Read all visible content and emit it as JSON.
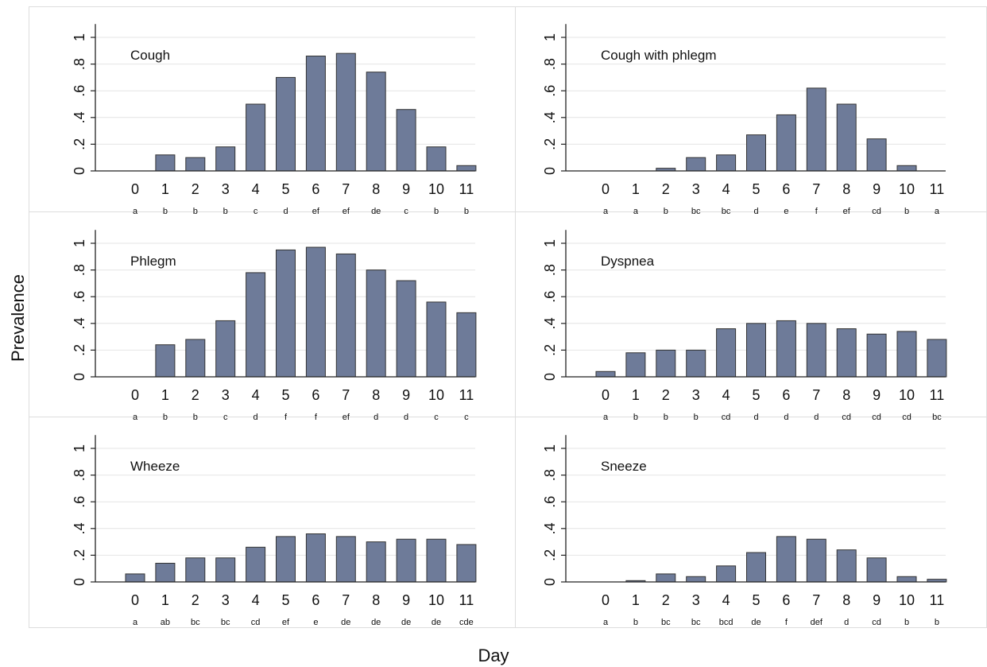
{
  "figure": {
    "ylabel": "Prevalence",
    "xlabel": "Day"
  },
  "chart_data": [
    {
      "type": "bar",
      "title": "Cough",
      "categories": [
        "0",
        "1",
        "2",
        "3",
        "4",
        "5",
        "6",
        "7",
        "8",
        "9",
        "10",
        "11"
      ],
      "values": [
        0,
        0.12,
        0.1,
        0.18,
        0.5,
        0.7,
        0.86,
        0.88,
        0.74,
        0.46,
        0.18,
        0.04
      ],
      "letters": [
        "a",
        "b",
        "b",
        "b",
        "c",
        "d",
        "ef",
        "ef",
        "de",
        "c",
        "b",
        "b"
      ],
      "yticks": [
        "0",
        ".2",
        ".4",
        ".6",
        ".8",
        "1"
      ],
      "ylim": [
        0,
        1.1
      ],
      "color": "#6e7b99"
    },
    {
      "type": "bar",
      "title": "Cough with phlegm",
      "categories": [
        "0",
        "1",
        "2",
        "3",
        "4",
        "5",
        "6",
        "7",
        "8",
        "9",
        "10",
        "11"
      ],
      "values": [
        0,
        0,
        0.02,
        0.1,
        0.12,
        0.27,
        0.42,
        0.62,
        0.5,
        0.24,
        0.04,
        0
      ],
      "letters": [
        "a",
        "a",
        "b",
        "bc",
        "bc",
        "d",
        "e",
        "f",
        "ef",
        "cd",
        "b",
        "a"
      ],
      "yticks": [
        "0",
        ".2",
        ".4",
        ".6",
        ".8",
        "1"
      ],
      "ylim": [
        0,
        1.1
      ],
      "color": "#6e7b99"
    },
    {
      "type": "bar",
      "title": "Phlegm",
      "categories": [
        "0",
        "1",
        "2",
        "3",
        "4",
        "5",
        "6",
        "7",
        "8",
        "9",
        "10",
        "11"
      ],
      "values": [
        0,
        0.24,
        0.28,
        0.42,
        0.78,
        0.95,
        0.97,
        0.92,
        0.8,
        0.72,
        0.56,
        0.48
      ],
      "letters": [
        "a",
        "b",
        "b",
        "c",
        "d",
        "f",
        "f",
        "ef",
        "d",
        "d",
        "c",
        "c"
      ],
      "yticks": [
        "0",
        ".2",
        ".4",
        ".6",
        ".8",
        "1"
      ],
      "ylim": [
        0,
        1.1
      ],
      "color": "#6e7b99"
    },
    {
      "type": "bar",
      "title": "Dyspnea",
      "categories": [
        "0",
        "1",
        "2",
        "3",
        "4",
        "5",
        "6",
        "7",
        "8",
        "9",
        "10",
        "11"
      ],
      "values": [
        0.04,
        0.18,
        0.2,
        0.2,
        0.36,
        0.4,
        0.42,
        0.4,
        0.36,
        0.32,
        0.34,
        0.28
      ],
      "letters": [
        "a",
        "b",
        "b",
        "b",
        "cd",
        "d",
        "d",
        "d",
        "cd",
        "cd",
        "cd",
        "bc"
      ],
      "yticks": [
        "0",
        ".2",
        ".4",
        ".6",
        ".8",
        "1"
      ],
      "ylim": [
        0,
        1.1
      ],
      "color": "#6e7b99"
    },
    {
      "type": "bar",
      "title": "Wheeze",
      "categories": [
        "0",
        "1",
        "2",
        "3",
        "4",
        "5",
        "6",
        "7",
        "8",
        "9",
        "10",
        "11"
      ],
      "values": [
        0.06,
        0.14,
        0.18,
        0.18,
        0.26,
        0.34,
        0.36,
        0.34,
        0.3,
        0.32,
        0.32,
        0.28
      ],
      "letters": [
        "a",
        "ab",
        "bc",
        "bc",
        "cd",
        "ef",
        "e",
        "de",
        "de",
        "de",
        "de",
        "cde"
      ],
      "yticks": [
        "0",
        ".2",
        ".4",
        ".6",
        ".8",
        "1"
      ],
      "ylim": [
        0,
        1.1
      ],
      "color": "#6e7b99"
    },
    {
      "type": "bar",
      "title": "Sneeze",
      "categories": [
        "0",
        "1",
        "2",
        "3",
        "4",
        "5",
        "6",
        "7",
        "8",
        "9",
        "10",
        "11"
      ],
      "values": [
        0,
        0.01,
        0.06,
        0.04,
        0.12,
        0.22,
        0.34,
        0.32,
        0.24,
        0.18,
        0.04,
        0.02
      ],
      "letters": [
        "a",
        "b",
        "bc",
        "bc",
        "bcd",
        "de",
        "f",
        "def",
        "d",
        "cd",
        "b",
        "b"
      ],
      "yticks": [
        "0",
        ".2",
        ".4",
        ".6",
        ".8",
        "1"
      ],
      "ylim": [
        0,
        1.1
      ],
      "color": "#6e7b99"
    }
  ]
}
